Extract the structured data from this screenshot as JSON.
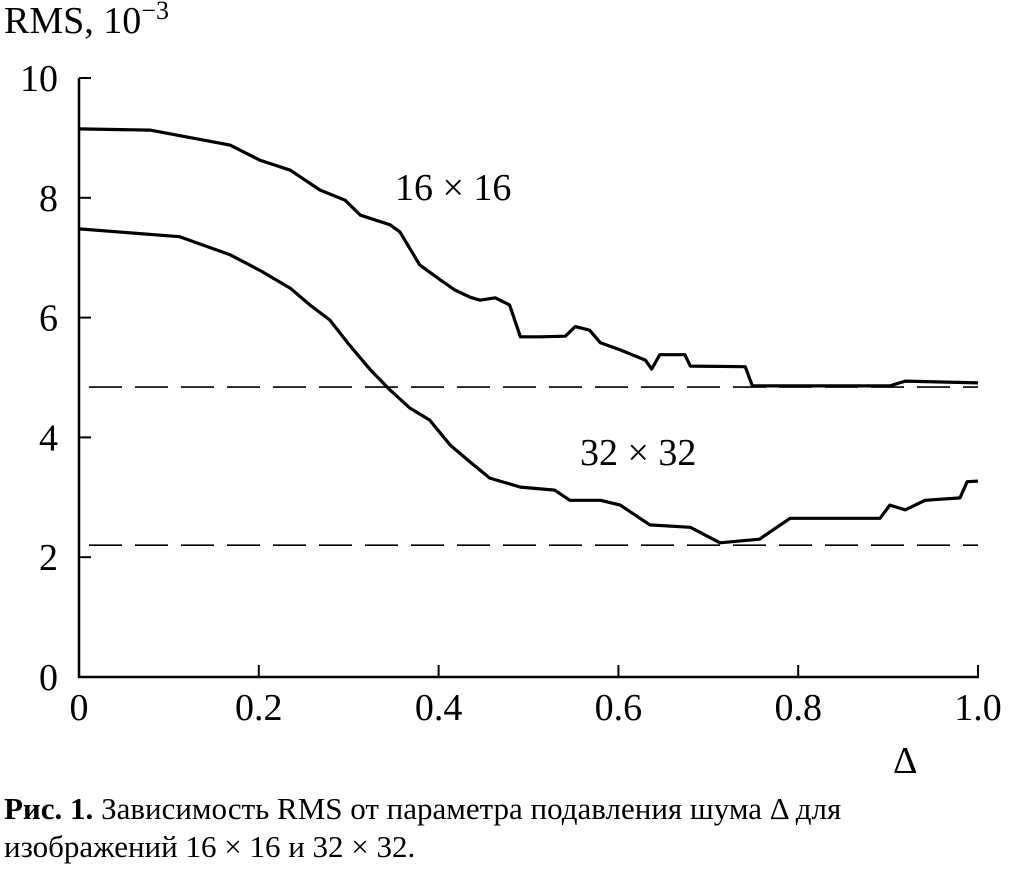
{
  "chart_data": {
    "type": "line",
    "ylabel": "RMS, 10",
    "ylabel_exp": "−3",
    "xlabel": "Δ",
    "xlim": [
      0,
      1.0
    ],
    "ylim": [
      0,
      10
    ],
    "x_ticks": [
      "0",
      "0.2",
      "0.4",
      "0.6",
      "0.8",
      "1.0"
    ],
    "y_ticks": [
      "0",
      "2",
      "4",
      "6",
      "8",
      "10"
    ],
    "grid": false,
    "series": [
      {
        "name": "16 × 16",
        "x": [
          0,
          0.079,
          0.168,
          0.201,
          0.235,
          0.268,
          0.296,
          0.313,
          0.346,
          0.357,
          0.379,
          0.402,
          0.418,
          0.435,
          0.446,
          0.463,
          0.479,
          0.491,
          0.513,
          0.541,
          0.552,
          0.568,
          0.58,
          0.602,
          0.63,
          0.637,
          0.646,
          0.674,
          0.68,
          0.741,
          0.749,
          0.902,
          0.919,
          1.0
        ],
        "y": [
          9.15,
          9.13,
          8.88,
          8.63,
          8.46,
          8.13,
          7.96,
          7.71,
          7.55,
          7.43,
          6.88,
          6.63,
          6.46,
          6.34,
          6.29,
          6.33,
          6.21,
          5.68,
          5.68,
          5.69,
          5.85,
          5.79,
          5.58,
          5.46,
          5.29,
          5.14,
          5.38,
          5.38,
          5.19,
          5.18,
          4.86,
          4.86,
          4.94,
          4.91
        ]
      },
      {
        "name": "32 × 32",
        "x": [
          0,
          0.112,
          0.168,
          0.201,
          0.235,
          0.257,
          0.279,
          0.301,
          0.324,
          0.346,
          0.368,
          0.39,
          0.413,
          0.435,
          0.457,
          0.491,
          0.529,
          0.546,
          0.58,
          0.602,
          0.635,
          0.68,
          0.713,
          0.757,
          0.791,
          0.891,
          0.902,
          0.919,
          0.941,
          0.98,
          0.988,
          1.0
        ],
        "y": [
          7.48,
          7.35,
          7.05,
          6.79,
          6.49,
          6.21,
          5.96,
          5.54,
          5.13,
          4.79,
          4.49,
          4.29,
          3.87,
          3.59,
          3.32,
          3.17,
          3.12,
          2.95,
          2.95,
          2.87,
          2.54,
          2.5,
          2.24,
          2.3,
          2.65,
          2.65,
          2.87,
          2.79,
          2.95,
          2.99,
          3.26,
          3.27
        ]
      }
    ],
    "reference_lines": [
      4.84,
      2.2
    ],
    "annotations": [
      "16 × 16",
      "32 × 32"
    ]
  },
  "caption": {
    "label": "Рис. 1.",
    "text": "Зависимость RMS от параметра подавления шума Δ для изображений 16 × 16 и 32 × 32."
  }
}
